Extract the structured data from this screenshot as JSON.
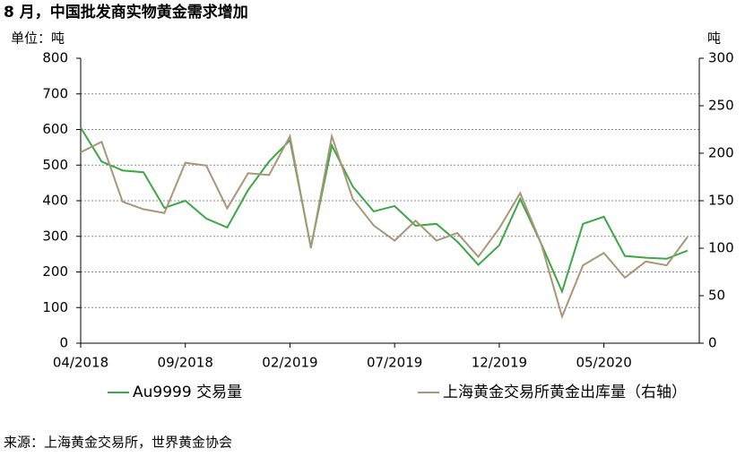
{
  "chart_data": {
    "type": "line",
    "title": "8 月，中国批发商实物黄金需求增加",
    "y_label": "单位：吨",
    "y2_label": "吨",
    "source": "来源：上海黄金交易所，世界黄金协会",
    "categories": [
      "04/2018",
      null,
      null,
      null,
      null,
      "09/2018",
      null,
      null,
      null,
      null,
      "02/2019",
      null,
      null,
      null,
      null,
      "07/2019",
      null,
      null,
      null,
      null,
      "12/2019",
      null,
      null,
      null,
      null,
      "05/2020",
      null,
      null,
      null,
      null
    ],
    "series": [
      {
        "name": "Au9999 交易量",
        "color": "#3aa845",
        "values": [
          605,
          510,
          485,
          480,
          380,
          400,
          350,
          325,
          430,
          510,
          570,
          270,
          555,
          440,
          370,
          385,
          330,
          335,
          285,
          220,
          275,
          405,
          280,
          145,
          335,
          355,
          245,
          240,
          237,
          260
        ]
      },
      {
        "name": "上海黄金交易所黄金出库量（右轴）",
        "color": "#a99677",
        "axis": "y2",
        "values": [
          201,
          212,
          149,
          141,
          137,
          190,
          187,
          142,
          179,
          177,
          218,
          100,
          218,
          152,
          124,
          108,
          129,
          108,
          116,
          91,
          121,
          158,
          105,
          28,
          82,
          95,
          69,
          86,
          82,
          112
        ]
      }
    ],
    "ylim": [
      0,
      800
    ],
    "yticks": [
      0,
      100,
      200,
      300,
      400,
      500,
      600,
      700,
      800
    ],
    "y2lim": [
      0,
      300
    ],
    "y2ticks": [
      0,
      50,
      100,
      150,
      200,
      250,
      300
    ],
    "grid": true
  }
}
